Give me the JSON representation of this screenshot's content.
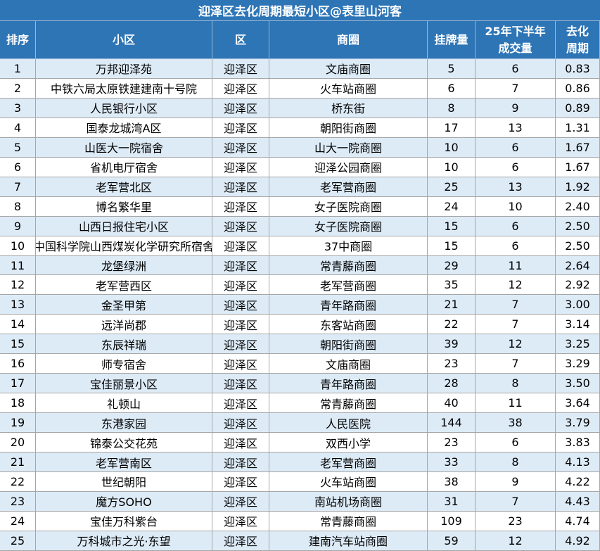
{
  "header": {
    "title": "迎泽区去化周期最短小区@表里山河客"
  },
  "table": {
    "columns": [
      "排序",
      "小区",
      "区",
      "商圈",
      "挂牌量",
      "25年下半年\n成交量",
      "去化\n周期"
    ],
    "rows": [
      [
        "1",
        "万邦迎泽苑",
        "迎泽区",
        "文庙商圈",
        "5",
        "6",
        "0.83"
      ],
      [
        "2",
        "中铁六局太原铁建建南十号院",
        "迎泽区",
        "火车站商圈",
        "6",
        "7",
        "0.86"
      ],
      [
        "3",
        "人民银行小区",
        "迎泽区",
        "桥东街",
        "8",
        "9",
        "0.89"
      ],
      [
        "4",
        "国泰龙城湾A区",
        "迎泽区",
        "朝阳街商圈",
        "17",
        "13",
        "1.31"
      ],
      [
        "5",
        "山医大一院宿舍",
        "迎泽区",
        "山大一院商圈",
        "10",
        "6",
        "1.67"
      ],
      [
        "6",
        "省机电厅宿舍",
        "迎泽区",
        "迎泽公园商圈",
        "10",
        "6",
        "1.67"
      ],
      [
        "7",
        "老军营北区",
        "迎泽区",
        "老军营商圈",
        "25",
        "13",
        "1.92"
      ],
      [
        "8",
        "博名繁华里",
        "迎泽区",
        "女子医院商圈",
        "24",
        "10",
        "2.40"
      ],
      [
        "9",
        "山西日报住宅小区",
        "迎泽区",
        "女子医院商圈",
        "15",
        "6",
        "2.50"
      ],
      [
        "10",
        "中国科学院山西煤炭化学研究所宿舍",
        "迎泽区",
        "37中商圈",
        "15",
        "6",
        "2.50"
      ],
      [
        "11",
        "龙堡绿洲",
        "迎泽区",
        "常青藤商圈",
        "29",
        "11",
        "2.64"
      ],
      [
        "12",
        "老军营西区",
        "迎泽区",
        "老军营商圈",
        "35",
        "12",
        "2.92"
      ],
      [
        "13",
        "金圣甲第",
        "迎泽区",
        "青年路商圈",
        "21",
        "7",
        "3.00"
      ],
      [
        "14",
        "远洋尚郡",
        "迎泽区",
        "东客站商圈",
        "22",
        "7",
        "3.14"
      ],
      [
        "15",
        "东辰祥瑞",
        "迎泽区",
        "朝阳街商圈",
        "39",
        "12",
        "3.25"
      ],
      [
        "16",
        "师专宿舍",
        "迎泽区",
        "文庙商圈",
        "23",
        "7",
        "3.29"
      ],
      [
        "17",
        "宝佳丽景小区",
        "迎泽区",
        "青年路商圈",
        "28",
        "8",
        "3.50"
      ],
      [
        "18",
        "礼顿山",
        "迎泽区",
        "常青藤商圈",
        "40",
        "11",
        "3.64"
      ],
      [
        "19",
        "东港家园",
        "迎泽区",
        "人民医院",
        "144",
        "38",
        "3.79"
      ],
      [
        "20",
        "锦泰公交花苑",
        "迎泽区",
        "双西小学",
        "23",
        "6",
        "3.83"
      ],
      [
        "21",
        "老军营南区",
        "迎泽区",
        "老军营商圈",
        "33",
        "8",
        "4.13"
      ],
      [
        "22",
        "世纪朝阳",
        "迎泽区",
        "火车站商圈",
        "38",
        "9",
        "4.22"
      ],
      [
        "23",
        "魔方SOHO",
        "迎泽区",
        "南站机场商圈",
        "31",
        "7",
        "4.43"
      ],
      [
        "24",
        "宝佳万科紫台",
        "迎泽区",
        "常青藤商圈",
        "109",
        "23",
        "4.74"
      ],
      [
        "25",
        "万科城市之光·东望",
        "迎泽区",
        "建南汽车站商圈",
        "59",
        "12",
        "4.92"
      ]
    ]
  }
}
